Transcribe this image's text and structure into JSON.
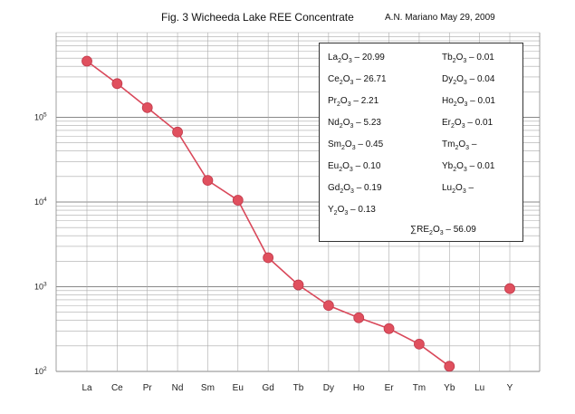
{
  "header": {
    "title": "Fig. 3  Wicheeda Lake REE Concentrate",
    "author": "A.N. Mariano May 29, 2009"
  },
  "legend": {
    "left": [
      [
        "La",
        "2",
        "O",
        "3",
        " – 20.99"
      ],
      [
        "Ce",
        "2",
        "O",
        "3",
        " – 26.71"
      ],
      [
        "Pr",
        "2",
        "O",
        "3",
        " –   2.21"
      ],
      [
        "Nd",
        "2",
        "O",
        "3",
        " –   5.23"
      ],
      [
        "Sm",
        "2",
        "O",
        "3",
        " – 0.45"
      ],
      [
        "Eu",
        "2",
        "O",
        "3",
        " –  0.10"
      ],
      [
        "Gd",
        "2",
        "O",
        "3",
        " –  0.19"
      ],
      [
        "Y",
        "2",
        "O",
        "3",
        "  –  0.13"
      ]
    ],
    "right": [
      [
        "Tb",
        "2",
        "O",
        "3",
        " – 0.01"
      ],
      [
        "Dy",
        "2",
        "O",
        "3",
        " – 0.04"
      ],
      [
        "Ho",
        "2",
        "O",
        "3",
        " – 0.01"
      ],
      [
        "Er",
        "2",
        "O",
        "3",
        " – 0.01"
      ],
      [
        "Tm",
        "2",
        "O",
        "3",
        " –"
      ],
      [
        "Yb",
        "2",
        "O",
        "3",
        " – 0.01"
      ],
      [
        "Lu",
        "2",
        "O",
        "3",
        " –"
      ]
    ],
    "total": [
      "∑RE",
      "2",
      "O",
      "3",
      " – 56.09"
    ]
  },
  "chart_data": {
    "type": "line",
    "title": "Fig. 3  Wicheeda Lake REE Concentrate",
    "y_scale": "log",
    "ylim": [
      100,
      1000000
    ],
    "y_ticks": [
      {
        "value": 100,
        "base": "10",
        "exp": "2"
      },
      {
        "value": 1000,
        "base": "10",
        "exp": "3"
      },
      {
        "value": 10000,
        "base": "10",
        "exp": "4"
      },
      {
        "value": 100000,
        "base": "10",
        "exp": "5"
      }
    ],
    "categories": [
      "La",
      "Ce",
      "Pr",
      "Nd",
      "Sm",
      "Eu",
      "Gd",
      "Tb",
      "Dy",
      "Ho",
      "Er",
      "Tm",
      "Yb",
      "Lu",
      "Y"
    ],
    "series": [
      {
        "values": [
          460000,
          250000,
          130000,
          67000,
          18000,
          10500,
          2200,
          1050,
          600,
          430,
          320,
          210,
          115,
          null,
          950
        ],
        "color": "#e0505e",
        "line_color": "#d9485a"
      }
    ],
    "grid": true
  }
}
